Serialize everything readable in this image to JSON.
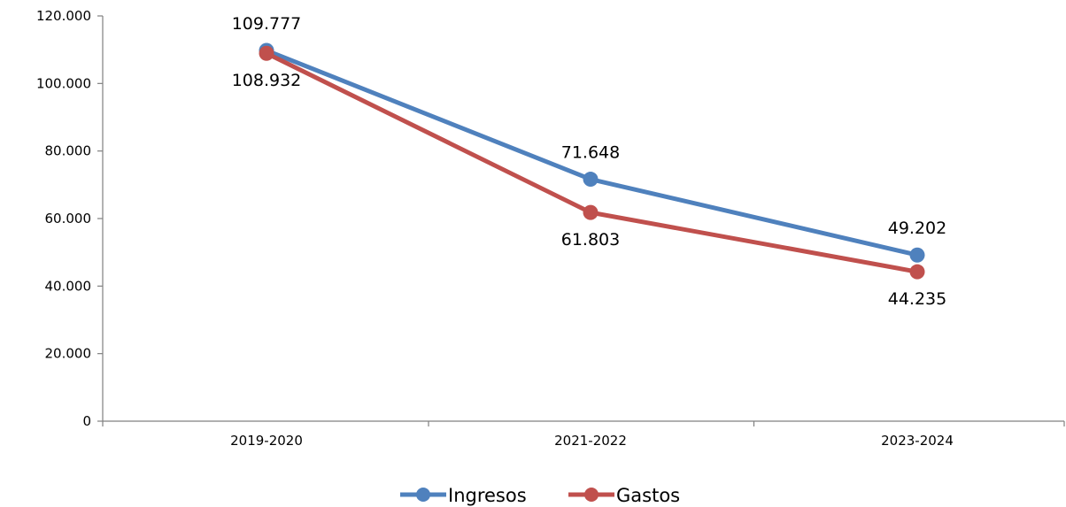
{
  "chart_data": {
    "type": "line",
    "categories": [
      "2019-2020",
      "2021-2022",
      "2023-2024"
    ],
    "series": [
      {
        "name": "Ingresos",
        "values": [
          109777,
          71648,
          49202
        ],
        "labels": [
          "109.777",
          "71.648",
          "49.202"
        ],
        "color": "#4F81BD",
        "label_position": "above"
      },
      {
        "name": "Gastos",
        "values": [
          108932,
          61803,
          44235
        ],
        "labels": [
          "108.932",
          "61.803",
          "44.235"
        ],
        "color": "#C0504D",
        "label_position": "below"
      }
    ],
    "ylim": [
      0,
      120000
    ],
    "yticks": [
      0,
      20000,
      40000,
      60000,
      80000,
      100000,
      120000
    ],
    "ytick_labels": [
      "0",
      "20.000",
      "40.000",
      "60.000",
      "80.000",
      "100.000",
      "120.000"
    ],
    "grid": false,
    "legend_position": "bottom",
    "axis_color": "#808080"
  }
}
